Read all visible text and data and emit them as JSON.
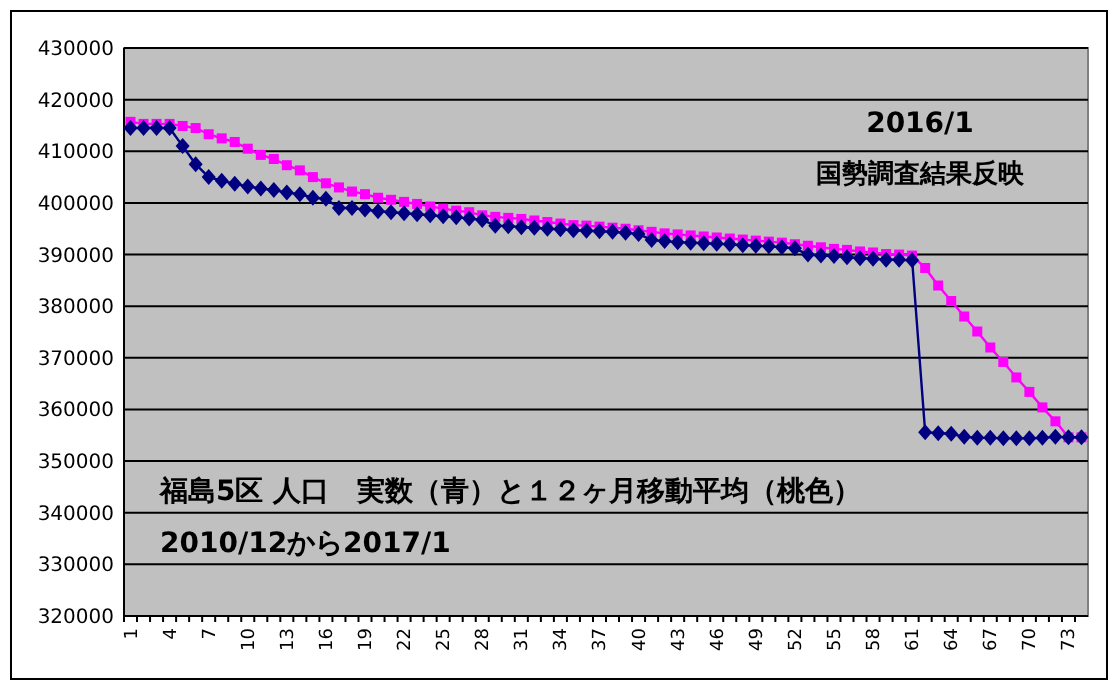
{
  "chart_data": {
    "type": "line",
    "categories": [
      "1",
      null,
      null,
      "4",
      null,
      null,
      "7",
      null,
      null,
      "10",
      null,
      null,
      "13",
      null,
      null,
      "16",
      null,
      null,
      "19",
      null,
      null,
      "22",
      null,
      null,
      "25",
      null,
      null,
      "28",
      null,
      null,
      "31",
      null,
      null,
      "34",
      null,
      null,
      "37",
      null,
      null,
      "40",
      null,
      null,
      "43",
      null,
      null,
      "46",
      null,
      null,
      "49",
      null,
      null,
      "52",
      null,
      null,
      "55",
      null,
      null,
      "58",
      null,
      null,
      "61",
      null,
      null,
      "64",
      null,
      null,
      "67",
      null,
      null,
      "70",
      null,
      null,
      "73",
      null
    ],
    "series": [
      {
        "color": "#ff00ff",
        "marker": "square",
        "values": [
          415700,
          415300,
          415300,
          415300,
          414900,
          414500,
          413300,
          412500,
          411800,
          410500,
          409300,
          408500,
          407300,
          406300,
          405000,
          403800,
          403000,
          402200,
          401700,
          401000,
          400600,
          400200,
          399800,
          399300,
          398900,
          398500,
          398200,
          397600,
          397300,
          397100,
          396900,
          396600,
          396300,
          396000,
          395700,
          395600,
          395400,
          395200,
          395000,
          394700,
          394400,
          394100,
          393900,
          393700,
          393500,
          393300,
          393100,
          392900,
          392700,
          392500,
          392300,
          392000,
          391700,
          391400,
          391100,
          390900,
          390600,
          390400,
          390100,
          390000,
          389800,
          387400,
          384000,
          381000,
          378000,
          375100,
          372000,
          369200,
          366200,
          363400,
          360400,
          357700,
          354600,
          354600
        ]
      },
      {
        "color": "#000080",
        "marker": "diamond",
        "values": [
          414500,
          414500,
          414500,
          414500,
          411000,
          407500,
          405000,
          404300,
          403700,
          403200,
          402800,
          402500,
          402000,
          401700,
          401000,
          400800,
          399000,
          399000,
          398700,
          398400,
          398200,
          398000,
          397800,
          397600,
          397400,
          397200,
          397000,
          396700,
          395600,
          395500,
          395300,
          395200,
          395000,
          394900,
          394700,
          394600,
          394500,
          394400,
          394200,
          394000,
          392800,
          392600,
          392400,
          392300,
          392200,
          392100,
          392000,
          391800,
          391700,
          391600,
          391400,
          391200,
          390000,
          389800,
          389700,
          389500,
          389300,
          389200,
          389000,
          389000,
          388900,
          355600,
          355400,
          355300,
          354700,
          354500,
          354500,
          354400,
          354400,
          354400,
          354500,
          354700,
          354600,
          354600
        ]
      }
    ],
    "ylim": [
      320000,
      430000
    ],
    "yticks": [
      320000,
      330000,
      340000,
      350000,
      360000,
      370000,
      380000,
      390000,
      400000,
      410000,
      420000,
      430000
    ],
    "grid": "y",
    "annotations": [
      "2016/1",
      "国勢調査結果反映",
      "福島5区 人口　実数（青）と１２ヶ月移動平均（桃色）",
      "2010/12から2017/1"
    ]
  }
}
